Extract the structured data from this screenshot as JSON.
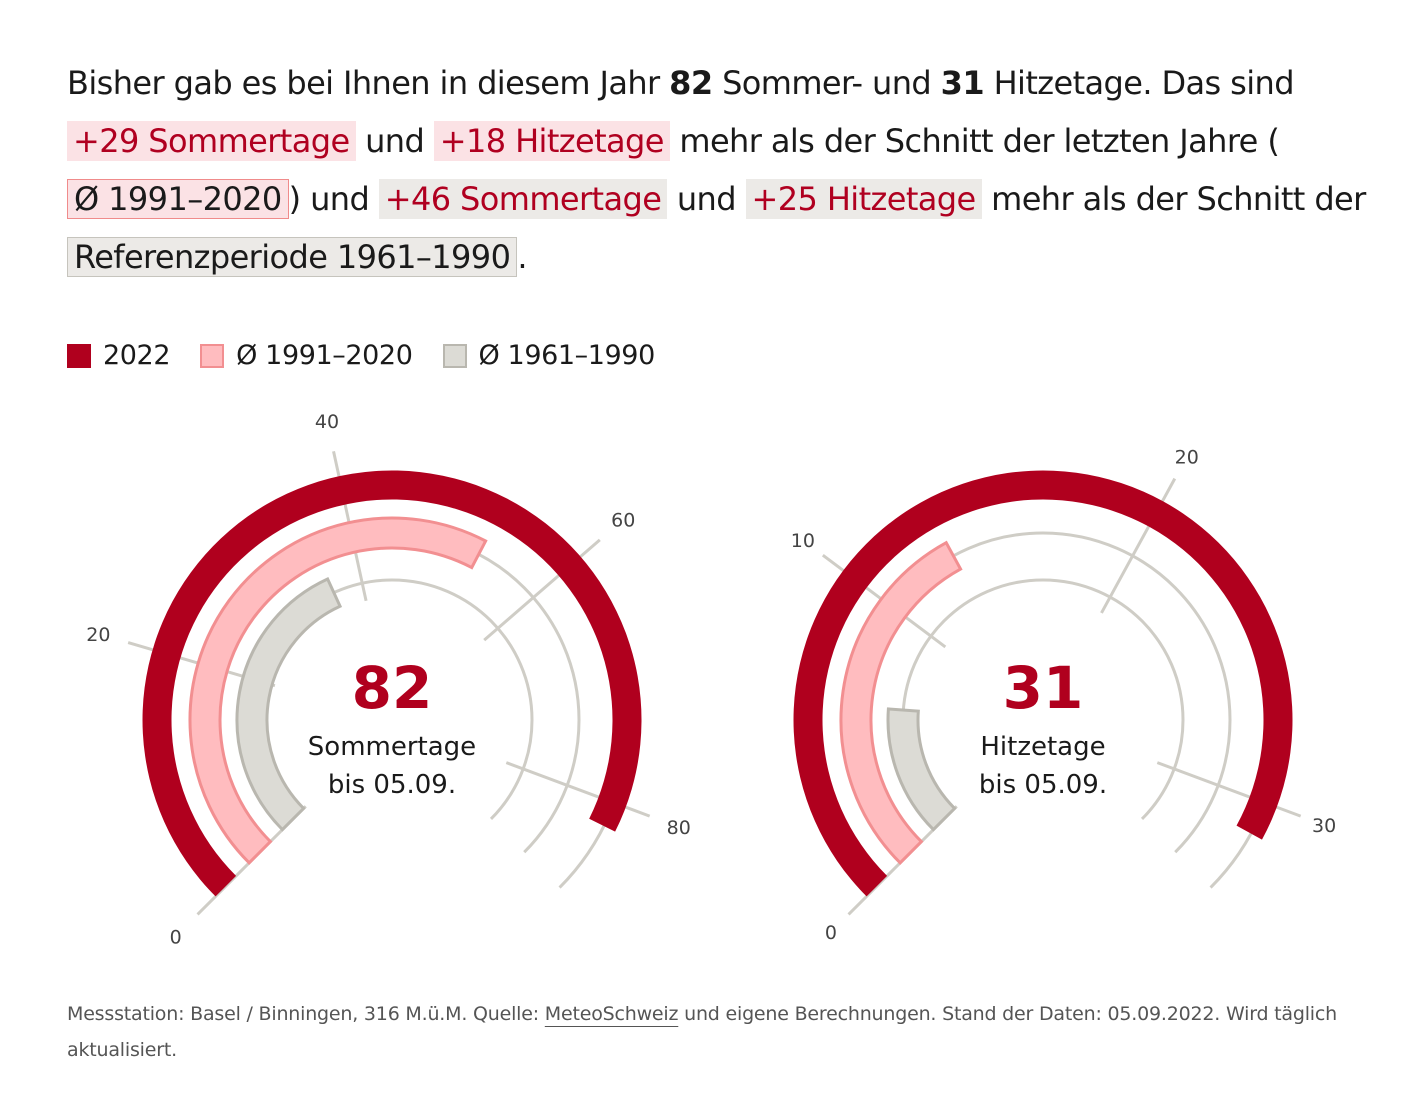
{
  "intro": {
    "p1": "Bisher gab es bei Ihnen in diesem Jahr ",
    "sommer_count": "82",
    "p2": " Sommer- und ",
    "hitze_count": "31",
    "p3": " Hitzetage. Das sind ",
    "chip1": "+29 Sommertage",
    "p4": " und ",
    "chip2": "+18 Hitzetage",
    "p5": " mehr als der Schnitt der letzten Jahre ( ",
    "chip3": "Ø 1991–2020",
    "p6": ") und ",
    "chip4": "+46 Sommertage",
    "p7": " und ",
    "chip5": "+25 Hitzetage",
    "p8": " mehr als der Schnitt der ",
    "chip6": "Referenzperiode 1961–1990",
    "p9": "."
  },
  "legend": {
    "item_2022": "2022",
    "item_9120": "Ø 1991–2020",
    "item_6190": "Ø 1961–1990"
  },
  "colors": {
    "y2022": "#b0001e",
    "avg9120_fill": "#ffbcbf",
    "avg9120_stroke": "#f28f91",
    "avg6190_fill": "#dcdbd5",
    "avg6190_stroke": "#b9b7af",
    "grid": "#cfcdc6"
  },
  "chart_data": [
    {
      "type": "radial-bar",
      "title": "Sommertage bis 05.09.",
      "center_value": "82",
      "center_label_1": "Sommertage",
      "center_label_2": "bis 05.09.",
      "ticks": [
        0,
        20,
        40,
        60,
        80
      ],
      "tick_labels": [
        "0",
        "20",
        "40",
        "60",
        "80"
      ],
      "max": 88,
      "series": [
        {
          "name": "2022",
          "value": 82
        },
        {
          "name": "Ø 1991–2020",
          "value": 53
        },
        {
          "name": "Ø 1961–1990",
          "value": 36
        }
      ]
    },
    {
      "type": "radial-bar",
      "title": "Hitzetage bis 05.09.",
      "center_value": "31",
      "center_label_1": "Hitzetage",
      "center_label_2": "bis 05.09.",
      "ticks": [
        0,
        10,
        20,
        30
      ],
      "tick_labels": [
        "0",
        "10",
        "20",
        "30"
      ],
      "max": 33,
      "series": [
        {
          "name": "2022",
          "value": 31
        },
        {
          "name": "Ø 1991–2020",
          "value": 13
        },
        {
          "name": "Ø 1961–1990",
          "value": 6
        }
      ]
    }
  ],
  "footer": {
    "f1": "Messstation: Basel / Binningen, 316 M.ü.M. Quelle: ",
    "link": "MeteoSchweiz",
    "f2": " und eigene Berechnungen. Stand der Daten: 05.09.2022. Wird täglich aktualisiert."
  }
}
